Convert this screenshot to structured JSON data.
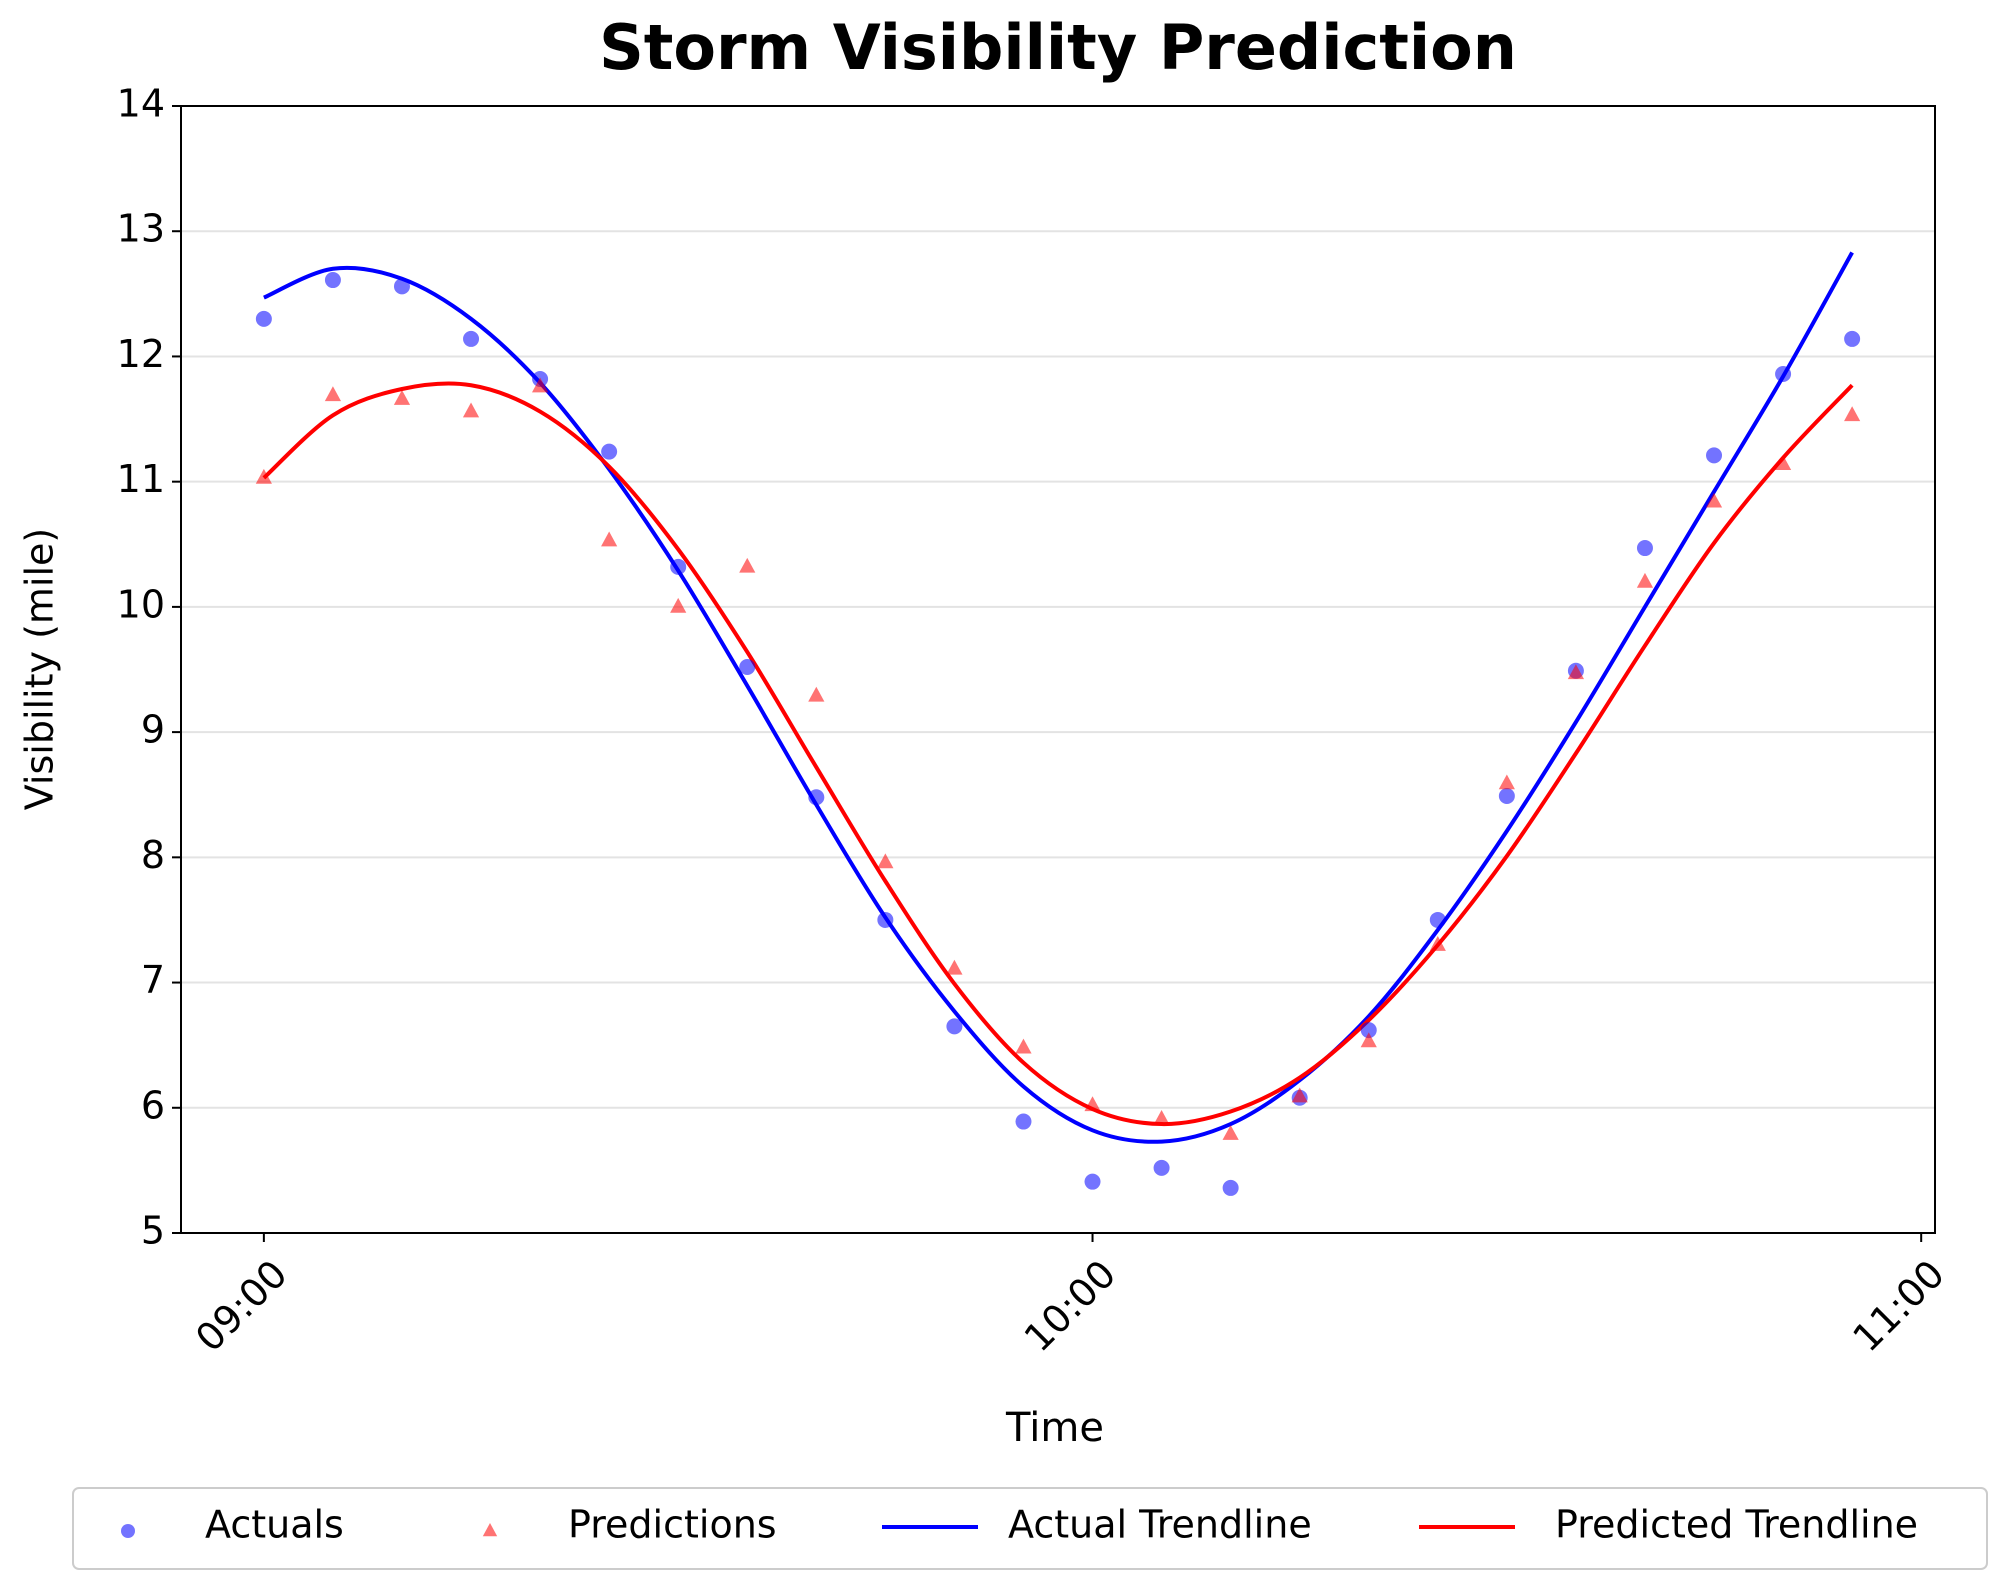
{
  "chart_data": {
    "type": "line",
    "title": "Storm Visibility Prediction",
    "x_label": "Time",
    "y_label": "Visibility (mile)",
    "x": [
      "09:00",
      "09:05",
      "09:10",
      "09:15",
      "09:20",
      "09:25",
      "09:30",
      "09:35",
      "09:40",
      "09:45",
      "09:50",
      "09:55",
      "10:00",
      "10:05",
      "10:10",
      "10:15",
      "10:20",
      "10:25",
      "10:30",
      "10:35",
      "10:40",
      "10:45",
      "10:50",
      "10:55"
    ],
    "xlim": [
      "08:54",
      "11:01"
    ],
    "xticks": [
      "09:00",
      "10:00",
      "11:00"
    ],
    "ylim": [
      5,
      14
    ],
    "yticks": [
      5,
      6,
      7,
      8,
      9,
      10,
      11,
      12,
      13,
      14
    ],
    "grid": true,
    "series": [
      {
        "name": "Actuals",
        "color": "#0000ff",
        "mark": "dot",
        "values": [
          12.3,
          12.61,
          12.56,
          12.14,
          11.82,
          11.24,
          10.32,
          9.52,
          8.48,
          7.5,
          6.65,
          5.89,
          5.41,
          5.52,
          5.36,
          6.08,
          6.62,
          7.5,
          8.49,
          9.49,
          10.47,
          11.21,
          11.86,
          12.14
        ]
      },
      {
        "name": "Predictions",
        "color": "#ff0000",
        "mark": "triangle",
        "values": [
          11.03,
          11.69,
          11.66,
          11.56,
          11.76,
          10.53,
          10.0,
          10.32,
          9.29,
          7.96,
          7.11,
          6.48,
          6.02,
          5.91,
          5.79,
          6.09,
          6.53,
          7.3,
          8.59,
          9.47,
          10.2,
          10.84,
          11.14,
          11.53
        ]
      },
      {
        "name": "Actual Trendline",
        "color": "#0000ff",
        "mark": "line",
        "values": [
          12.47,
          12.7,
          12.62,
          12.3,
          11.79,
          11.1,
          10.29,
          9.37,
          8.42,
          7.52,
          6.77,
          6.17,
          5.82,
          5.73,
          5.87,
          6.22,
          6.73,
          7.42,
          8.21,
          9.08,
          10.0,
          10.92,
          11.84,
          12.83
        ]
      },
      {
        "name": "Predicted Trendline",
        "color": "#ff0000",
        "mark": "line",
        "values": [
          11.03,
          11.53,
          11.74,
          11.77,
          11.56,
          11.12,
          10.46,
          9.64,
          8.72,
          7.81,
          6.99,
          6.36,
          5.99,
          5.87,
          5.97,
          6.24,
          6.7,
          7.3,
          8.01,
          8.83,
          9.69,
          10.51,
          11.19,
          11.77
        ]
      }
    ]
  }
}
